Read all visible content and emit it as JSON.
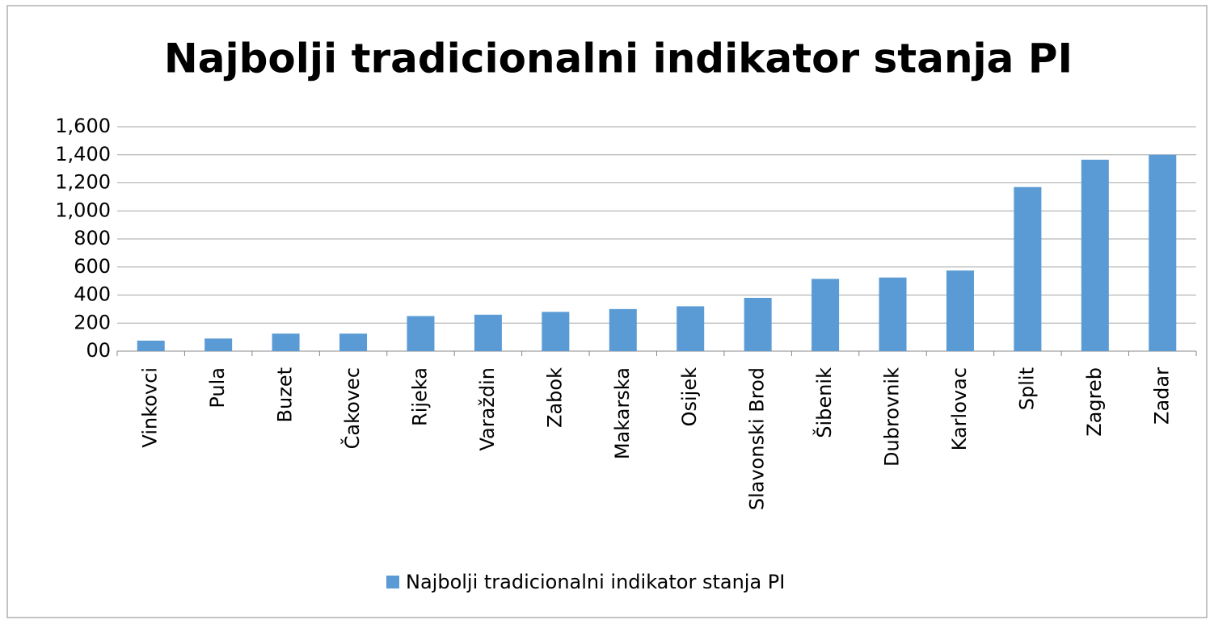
{
  "chart_data": {
    "type": "bar",
    "title": "Najbolji tradicionalni indikator stanja PI",
    "categories": [
      "Vinkovci",
      "Pula",
      "Buzet",
      "Čakovec",
      "Rijeka",
      "Varaždin",
      "Zabok",
      "Makarska",
      "Osijek",
      "Slavonski Brod",
      "Šibenik",
      "Dubrovnik",
      "Karlovac",
      "Split",
      "Zagreb",
      "Zadar"
    ],
    "series": [
      {
        "name": "Najbolji tradicionalni indikator stanja PI",
        "color": "#5b9bd5",
        "values": [
          75,
          90,
          125,
          125,
          250,
          260,
          280,
          300,
          320,
          380,
          515,
          525,
          575,
          1170,
          1365,
          1400
        ]
      }
    ],
    "ylim": [
      0,
      1600
    ],
    "yticks": [
      {
        "value": 0,
        "label": "00"
      },
      200,
      400,
      600,
      800,
      {
        "value": 1000,
        "label": "1,000"
      },
      {
        "value": 1200,
        "label": "1,200"
      },
      {
        "value": 1400,
        "label": "1,400"
      },
      {
        "value": 1600,
        "label": "1,600"
      }
    ],
    "grid": true,
    "legend": "bottom"
  }
}
